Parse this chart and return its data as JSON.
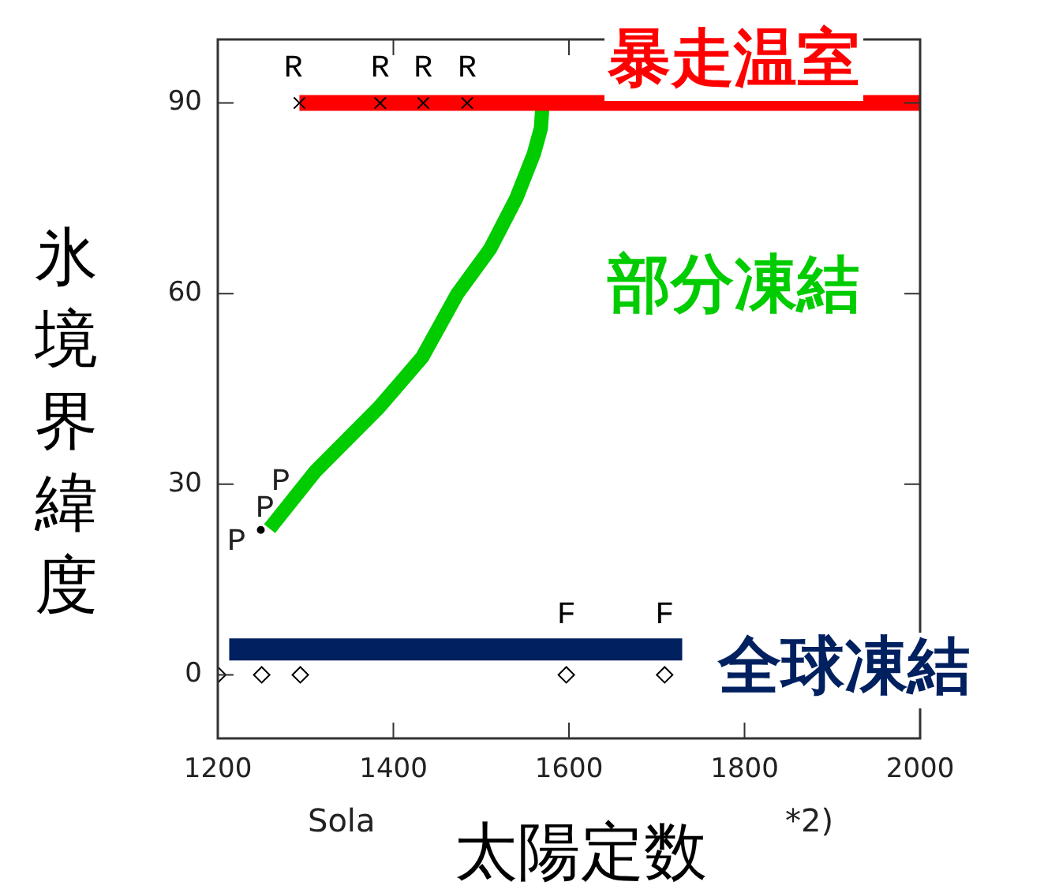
{
  "chart_data": {
    "type": "line",
    "xlabel": "太陽定数",
    "ylabel": "氷境界緯度",
    "xlim": [
      1200,
      2000
    ],
    "xticks": [
      1200,
      1400,
      1600,
      1800,
      2000
    ],
    "ylim": [
      -10,
      100
    ],
    "yticks": [
      0,
      30,
      60,
      90
    ],
    "grid": false,
    "legend": false,
    "line_style": "solid",
    "series": [
      {
        "name": "暴走温室",
        "color": "#ff0000",
        "marker": "none",
        "x": [
          1293,
          2000
        ],
        "values": [
          90,
          90
        ]
      },
      {
        "name": "部分凍結",
        "color": "#00cc00",
        "marker": "none",
        "x": [
          1259,
          1311,
          1383,
          1433,
          1473,
          1510,
          1540,
          1560,
          1568,
          1570
        ],
        "values": [
          23,
          32,
          42,
          50,
          60,
          67,
          75,
          82,
          86,
          90
        ]
      },
      {
        "name": "全球凍結",
        "color": "#002060",
        "marker": "none",
        "x": [
          1213,
          1729
        ],
        "values": [
          4,
          4
        ]
      },
      {
        "color": "#000000",
        "type": "scatter",
        "marker": "diamond",
        "x": [
          1200,
          1250,
          1294,
          1597,
          1709
        ],
        "values": [
          0,
          0,
          0,
          0,
          0
        ]
      },
      {
        "color": "#000000",
        "type": "scatter",
        "marker": "cross",
        "x": [
          1293,
          1385,
          1434,
          1484
        ],
        "values": [
          90,
          90,
          90,
          90
        ]
      },
      {
        "color": "#000000",
        "type": "scatter",
        "marker": "circle",
        "x": [
          1249
        ],
        "values": [
          22.8
        ]
      }
    ],
    "annotations": [
      {
        "text": "R",
        "x": 1286,
        "y": 90
      },
      {
        "text": "R",
        "x": 1385,
        "y": 90
      },
      {
        "text": "R",
        "x": 1434,
        "y": 90
      },
      {
        "text": "R",
        "x": 1484,
        "y": 90
      },
      "P",
      "P",
      "P",
      {
        "text": "F",
        "x": 1597,
        "y": 4
      },
      {
        "text": "F",
        "x": 1709,
        "y": 4
      },
      "Sola",
      "*2)"
    ]
  }
}
